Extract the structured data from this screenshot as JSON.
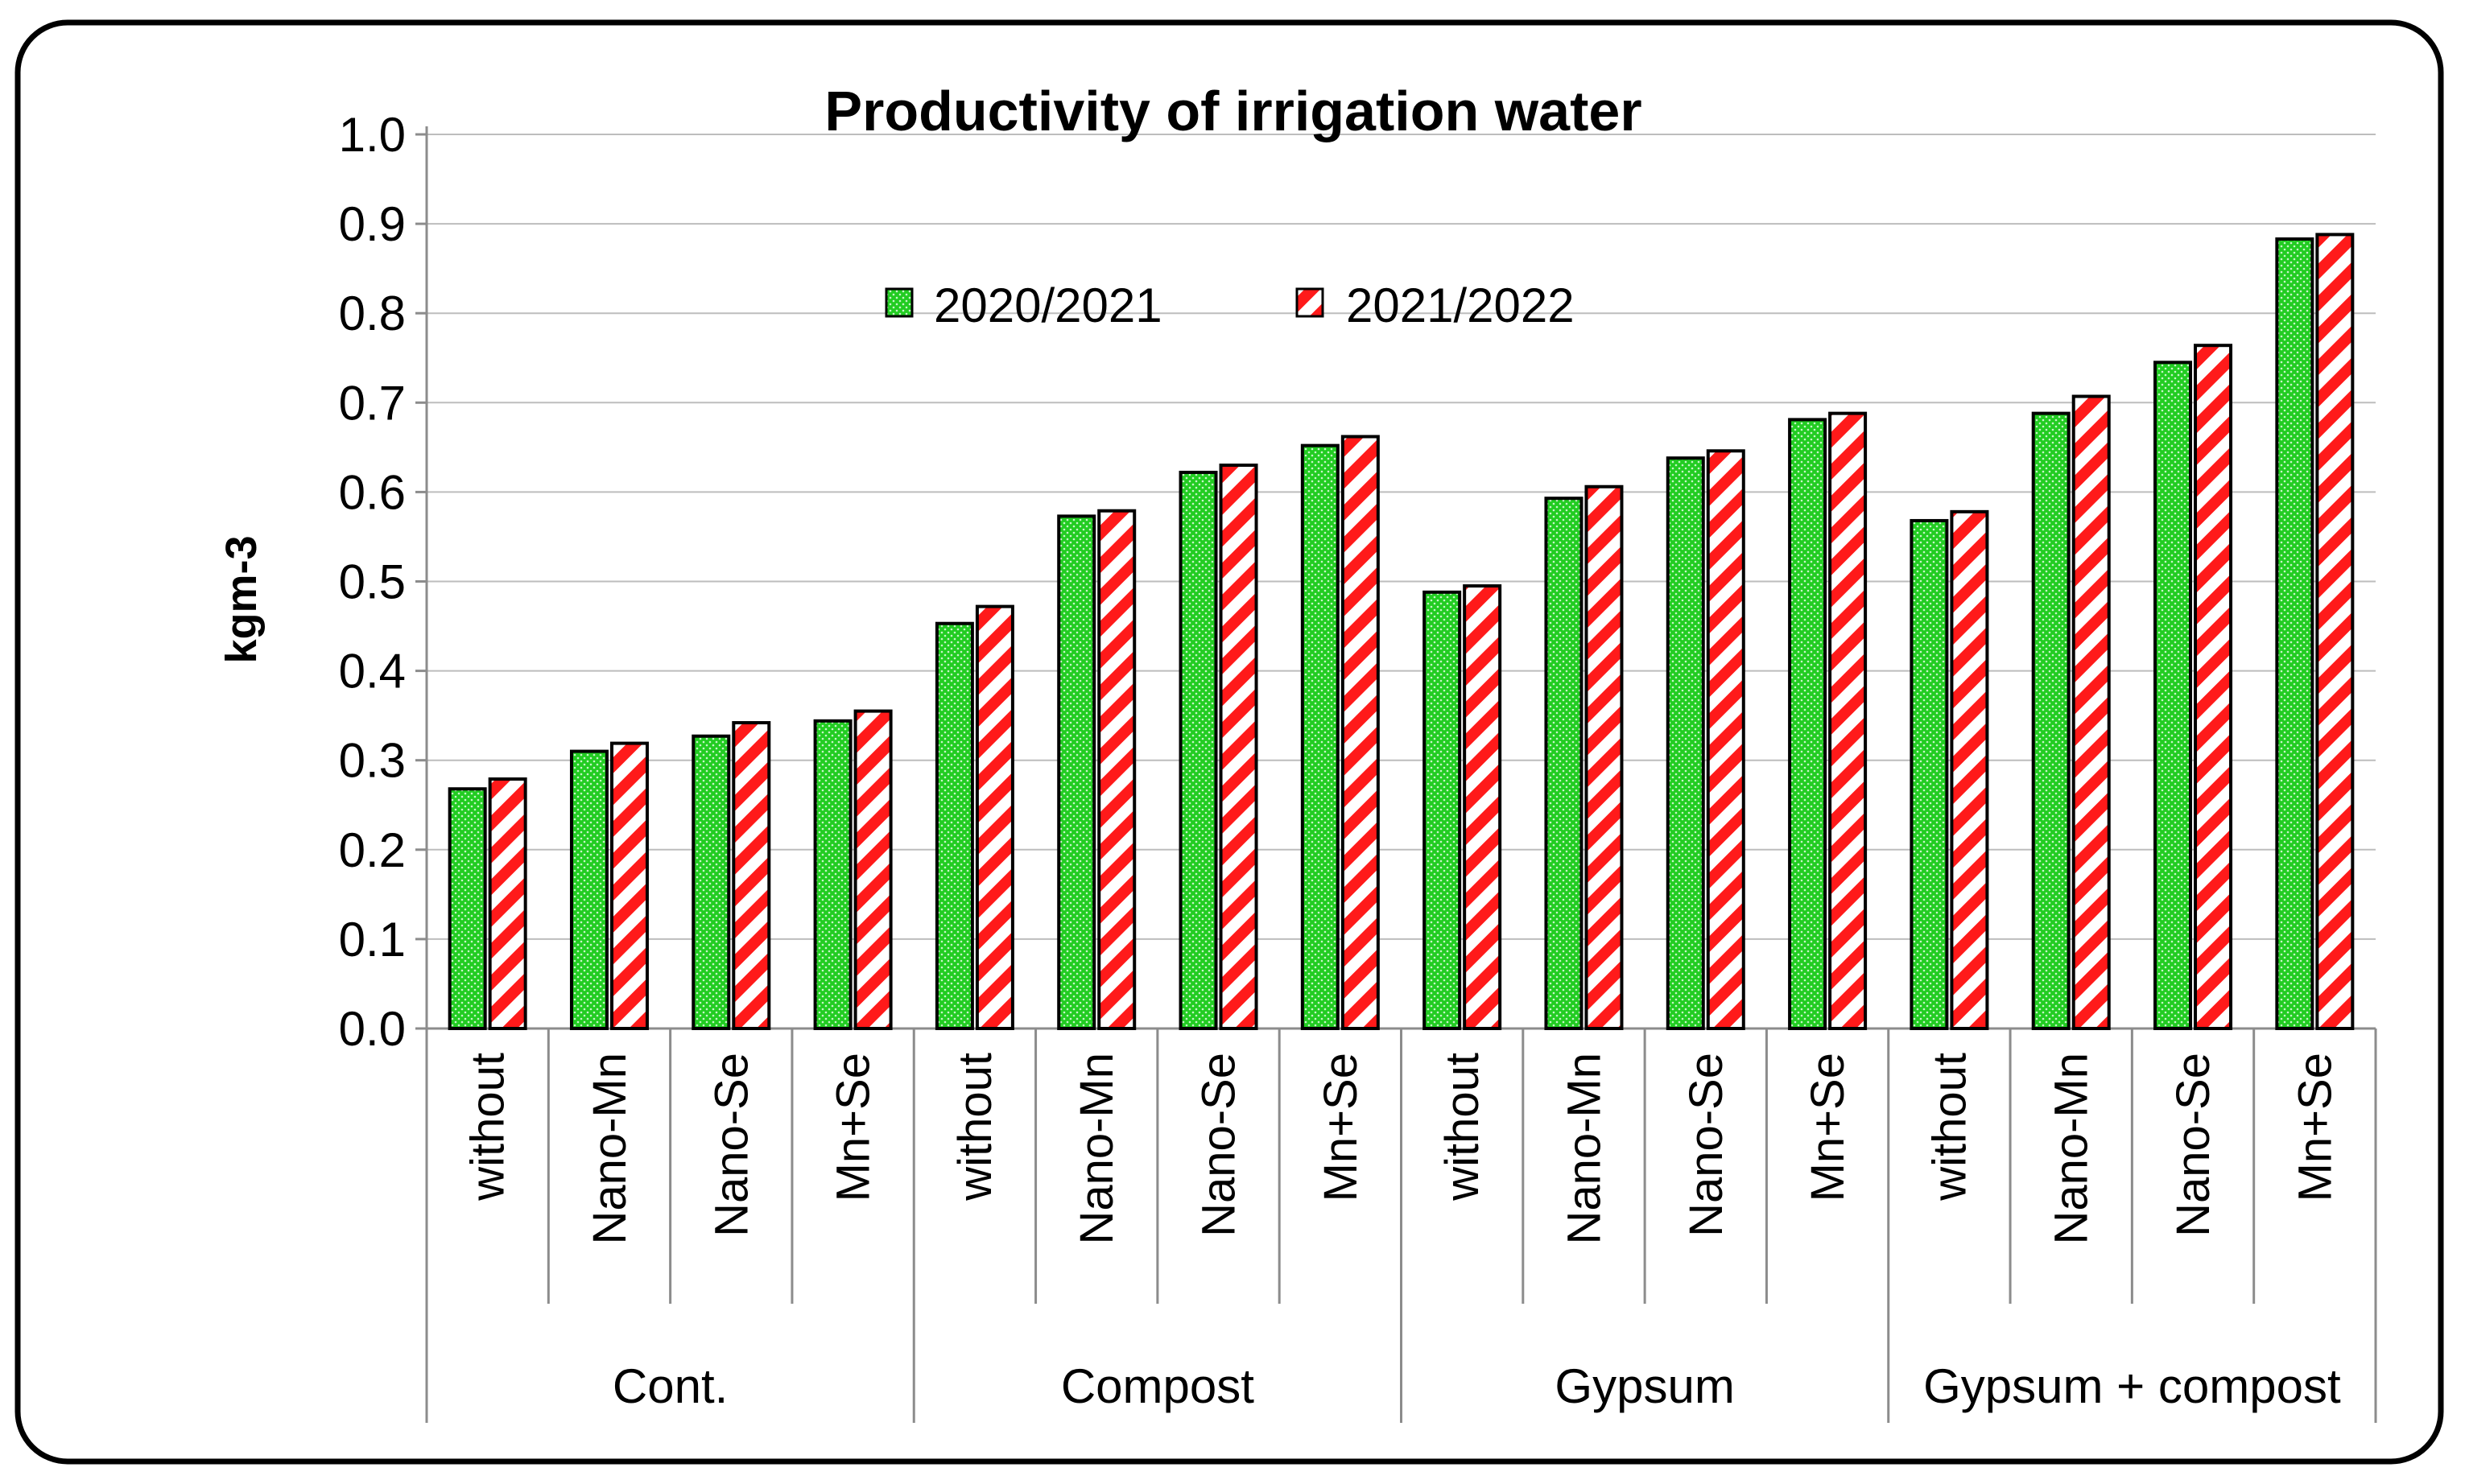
{
  "chart_data": {
    "type": "bar",
    "title": "Productivity of irrigation water",
    "ylabel": "kgm-3",
    "xlabel": "",
    "ylim": [
      0,
      1.0
    ],
    "yticks": [
      "0.0",
      "0.1",
      "0.2",
      "0.3",
      "0.4",
      "0.5",
      "0.6",
      "0.7",
      "0.8",
      "0.9",
      "1.0"
    ],
    "ytick_values": [
      0,
      0.1,
      0.2,
      0.3,
      0.4,
      0.5,
      0.6,
      0.7,
      0.8,
      0.9,
      1.0
    ],
    "grid": true,
    "legend_position": "top-center",
    "groups": [
      "Cont.",
      "Compost",
      "Gypsum",
      "Gypsum + compost"
    ],
    "categories": [
      "without",
      "Nano-Mn",
      "Nano-Se",
      "Mn+Se",
      "without",
      "Nano-Mn",
      "Nano-Se",
      "Mn+Se",
      "without",
      "Nano-Mn",
      "Nano-Se",
      "Mn+Se",
      "without",
      "Nano-Mn",
      "Nano-Se",
      "Mn+Se"
    ],
    "series": [
      {
        "name": "2020/2021",
        "color": "#22cc22",
        "pattern": "dotted-green",
        "values": [
          0.268,
          0.31,
          0.327,
          0.344,
          0.453,
          0.573,
          0.622,
          0.652,
          0.488,
          0.593,
          0.638,
          0.681,
          0.568,
          0.688,
          0.745,
          0.883
        ]
      },
      {
        "name": "2021/2022",
        "color": "#ff1a1a",
        "pattern": "red-diagonal-stripes",
        "values": [
          0.279,
          0.319,
          0.342,
          0.355,
          0.472,
          0.579,
          0.63,
          0.662,
          0.495,
          0.606,
          0.646,
          0.688,
          0.578,
          0.707,
          0.764,
          0.888
        ]
      }
    ]
  }
}
